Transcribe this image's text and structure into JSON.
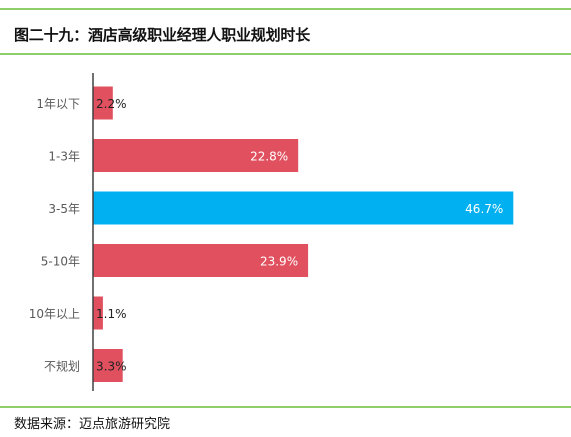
{
  "title": "图二十九：酒店高级职业经理人职业规划时长",
  "source": "数据来源：迈点旅游研究院",
  "colors": {
    "default_bar": "#e0505f",
    "highlight_bar": "#00b0f0",
    "rule": "#8fcf6b",
    "axis": "#404040",
    "category_text": "#595959"
  },
  "chart_data": {
    "type": "bar",
    "orientation": "horizontal",
    "categories": [
      "1年以下",
      "1-3年",
      "3-5年",
      "5-10年",
      "10年以上",
      "不规划"
    ],
    "values": [
      2.2,
      22.8,
      46.7,
      23.9,
      1.1,
      3.3
    ],
    "value_labels": [
      "2.2%",
      "22.8%",
      "46.7%",
      "23.9%",
      "1.1%",
      "3.3%"
    ],
    "highlight_index": 2,
    "xlim": [
      0,
      50
    ],
    "grid": false,
    "legend": "none"
  }
}
